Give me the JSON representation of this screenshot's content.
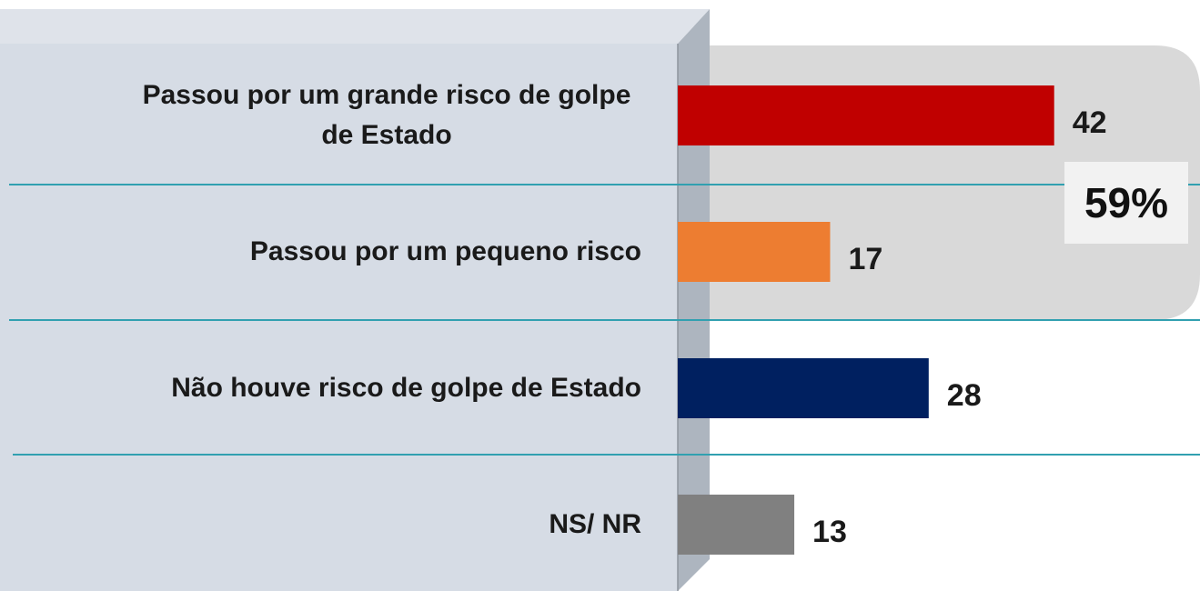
{
  "chart_data": {
    "type": "bar",
    "orientation": "horizontal",
    "categories": [
      "Passou por um grande risco de golpe de Estado",
      "Passou por um pequeno risco",
      "Não houve risco de golpe de Estado",
      "NS/ NR"
    ],
    "values": [
      42,
      17,
      28,
      13
    ],
    "colors": [
      "#c00000",
      "#ed7d31",
      "#002060",
      "#808080"
    ],
    "annotation": "59%"
  }
}
